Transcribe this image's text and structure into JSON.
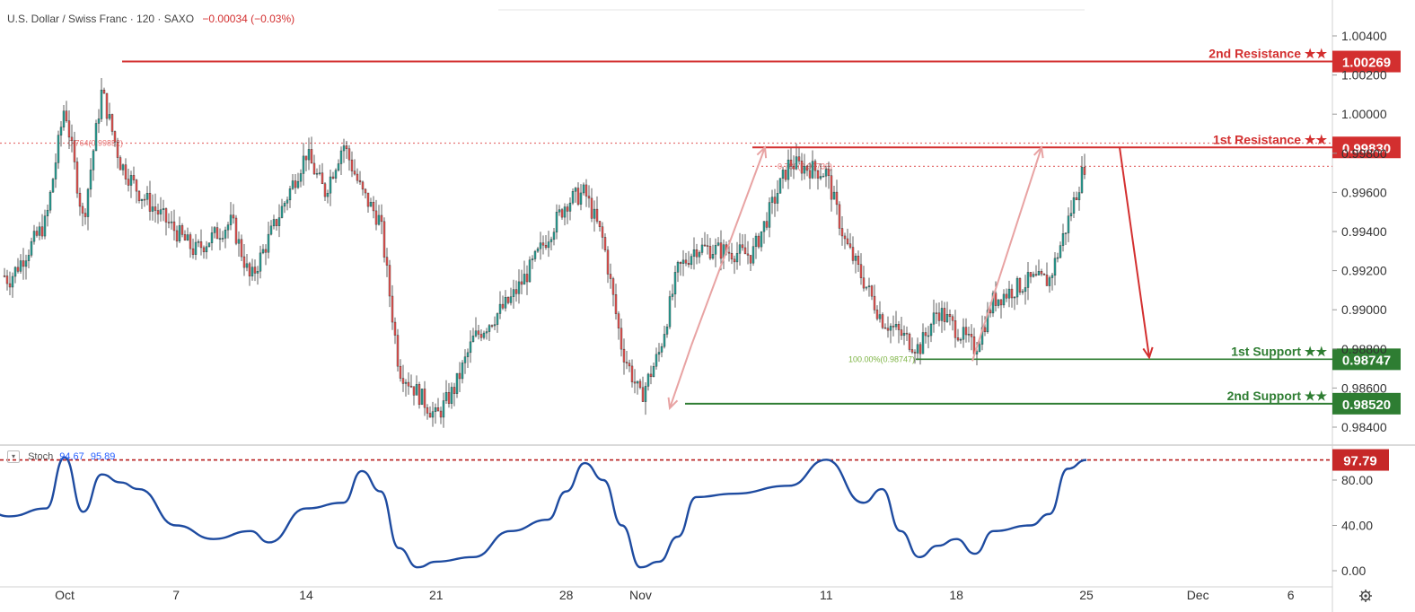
{
  "header": {
    "title": "U.S. Dollar / Swiss Franc · 120 · SAXO",
    "change": "−0.00034 (−0.03%)"
  },
  "stoch": {
    "label": "Stoch",
    "k": "94.67",
    "d": "95.89",
    "current": "97.79"
  },
  "colors": {
    "up": "#26a69a",
    "down": "#ef5350",
    "resistance": "#d32f2f",
    "support": "#2e7d32",
    "stoch_line": "#1e4ba0",
    "arrow_light": "#e8a3a3"
  },
  "chart_data": [
    {
      "type": "candlestick",
      "title": "U.S. Dollar / Swiss Franc · 120 · SAXO",
      "x_ticks": [
        "Oct",
        "7",
        "14",
        "21",
        "28",
        "Nov",
        "11",
        "18",
        "25",
        "Dec",
        "6"
      ],
      "y_ticks": [
        "1.00400",
        "1.00200",
        "1.00000",
        "0.99800",
        "0.99600",
        "0.99400",
        "0.99200",
        "0.99000",
        "0.98800",
        "0.98600",
        "0.98400"
      ],
      "ylim": [
        0.9832,
        1.0046
      ],
      "price_path": [
        [
          "Sep 26",
          0.9935
        ],
        [
          "Sep 28",
          0.9915
        ],
        [
          "Sep 30",
          0.9945
        ],
        [
          "Oct 1",
          1.0005
        ],
        [
          "Oct 2",
          0.9945
        ],
        [
          "Oct 3",
          1.0012
        ],
        [
          "Oct 4",
          0.9975
        ],
        [
          "Oct 5",
          0.996
        ],
        [
          "Oct 8",
          0.993
        ],
        [
          "Oct 10",
          0.9945
        ],
        [
          "Oct 11",
          0.9915
        ],
        [
          "Oct 14",
          0.998
        ],
        [
          "Oct 15",
          0.996
        ],
        [
          "Oct 16",
          0.9985
        ],
        [
          "Oct 17",
          0.996
        ],
        [
          "Oct 18",
          0.9945
        ],
        [
          "Oct 19",
          0.987
        ],
        [
          "Oct 21",
          0.9845
        ],
        [
          "Oct 22",
          0.986
        ],
        [
          "Oct 23",
          0.9885
        ],
        [
          "Oct 25",
          0.9905
        ],
        [
          "Oct 26",
          0.992
        ],
        [
          "Oct 28",
          0.9955
        ],
        [
          "Oct 29",
          0.996
        ],
        [
          "Oct 30",
          0.9935
        ],
        [
          "Oct 31",
          0.988
        ],
        [
          "Nov 1",
          0.9855
        ],
        [
          "Nov 2",
          0.9878
        ],
        [
          "Nov 3",
          0.992
        ],
        [
          "Nov 4",
          0.9932
        ],
        [
          "Nov 7",
          0.9928
        ],
        [
          "Nov 9",
          0.9975
        ],
        [
          "Nov 11",
          0.997
        ],
        [
          "Nov 12",
          0.9935
        ],
        [
          "Nov 14",
          0.9895
        ],
        [
          "Nov 16",
          0.988
        ],
        [
          "Nov 17",
          0.99
        ],
        [
          "Nov 18",
          0.989
        ],
        [
          "Nov 19",
          0.988
        ],
        [
          "Nov 20",
          0.9905
        ],
        [
          "Nov 22",
          0.9915
        ],
        [
          "Nov 23",
          0.9915
        ],
        [
          "Nov 24",
          0.9945
        ],
        [
          "Nov 25",
          0.9977
        ]
      ],
      "levels": [
        {
          "label": "2nd Resistance ★★",
          "value": "1.00269",
          "level": 1.00269
        },
        {
          "label": "1st Resistance ★★",
          "value": "0.99830",
          "level": 0.9983
        },
        {
          "label": "1st Support ★★",
          "value": "0.98747",
          "level": 0.98747
        },
        {
          "label": "2nd Support ★★",
          "value": "0.98520",
          "level": 0.9852
        }
      ],
      "fib_labels": [
        {
          "text": "0.764(0.99852)",
          "level": 0.99852
        },
        {
          "text": "0.786(0.99733)",
          "level": 0.99733
        },
        {
          "text": "100.00%(0.98747)",
          "level": 0.98747
        }
      ]
    },
    {
      "type": "line",
      "title": "Stoch",
      "y_ticks": [
        "80.00",
        "40.00",
        "0.00"
      ],
      "ylim": [
        -5,
        105
      ],
      "reference_level": 97.79,
      "series": [
        {
          "name": "Stoch",
          "values": [
            [
              "Sep 26",
              62
            ],
            [
              "Sep 28",
              48
            ],
            [
              "Sep 30",
              55
            ],
            [
              "Oct 1",
              100
            ],
            [
              "Oct 2",
              52
            ],
            [
              "Oct 3",
              85
            ],
            [
              "Oct 4",
              78
            ],
            [
              "Oct 5",
              72
            ],
            [
              "Oct 7",
              40
            ],
            [
              "Oct 9",
              28
            ],
            [
              "Oct 11",
              35
            ],
            [
              "Oct 12",
              25
            ],
            [
              "Oct 14",
              55
            ],
            [
              "Oct 16",
              60
            ],
            [
              "Oct 17",
              88
            ],
            [
              "Oct 18",
              70
            ],
            [
              "Oct 19",
              20
            ],
            [
              "Oct 20",
              3
            ],
            [
              "Oct 21",
              8
            ],
            [
              "Oct 23",
              12
            ],
            [
              "Oct 25",
              35
            ],
            [
              "Oct 27",
              45
            ],
            [
              "Oct 28",
              70
            ],
            [
              "Oct 29",
              95
            ],
            [
              "Oct 30",
              80
            ],
            [
              "Oct 31",
              40
            ],
            [
              "Nov 1",
              3
            ],
            [
              "Nov 2",
              8
            ],
            [
              "Nov 3",
              30
            ],
            [
              "Nov 4",
              65
            ],
            [
              "Nov 6",
              68
            ],
            [
              "Nov 9",
              75
            ],
            [
              "Nov 11",
              98
            ],
            [
              "Nov 13",
              60
            ],
            [
              "Nov 14",
              72
            ],
            [
              "Nov 15",
              35
            ],
            [
              "Nov 16",
              12
            ],
            [
              "Nov 17",
              22
            ],
            [
              "Nov 18",
              28
            ],
            [
              "Nov 19",
              15
            ],
            [
              "Nov 20",
              35
            ],
            [
              "Nov 22",
              40
            ],
            [
              "Nov 23",
              50
            ],
            [
              "Nov 24",
              90
            ],
            [
              "Nov 25",
              97.8
            ]
          ]
        }
      ]
    }
  ]
}
